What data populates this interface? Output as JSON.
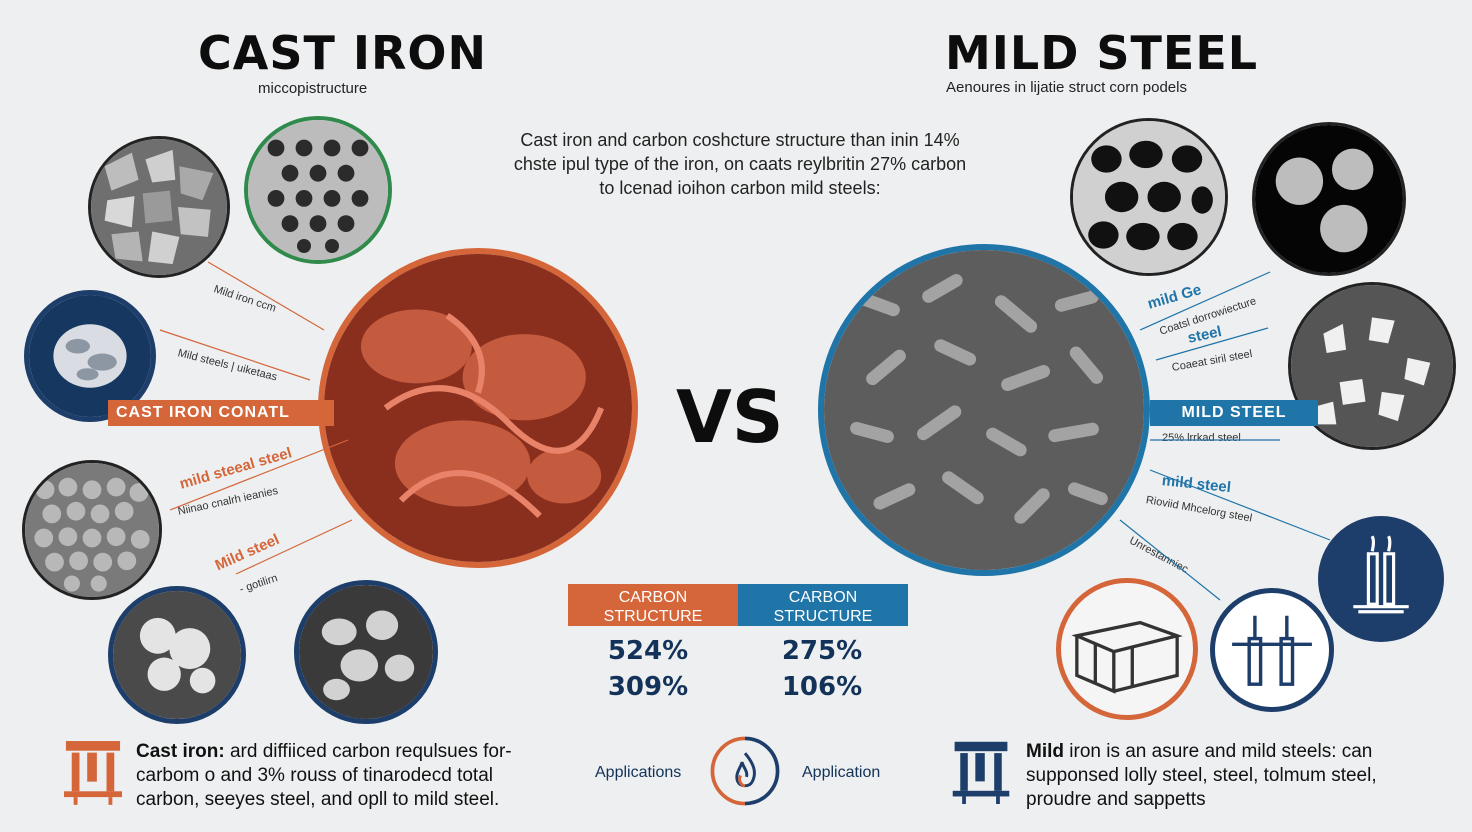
{
  "left": {
    "title": "CAST IRON",
    "subtitle": "miccopistructure",
    "banner": "CAST IRON  CONATL",
    "annotations": [
      "Mild iron ccm",
      "Mild steels | uiketaas",
      "mild steeal steel",
      "Niinao cnalrh ieanies",
      "Mild steel",
      "- gotilirn"
    ],
    "bottom_lead": "Cast iron:",
    "bottom_text_1": " ard diffiiced carbon requlsues for-",
    "bottom_text_2": "carbom o and 3% rouss of tinarodecd total",
    "bottom_text_3": "carbon, seeyes steel, and opll to mild steel.",
    "color": "#d4663a"
  },
  "right": {
    "title": "MILD STEEL",
    "subtitle": "Aenoures in lijatie struct corn podels",
    "banner": "MILD STEEL",
    "annotations": [
      "mild Ge",
      "Coatsl dorrowiecture",
      "steel",
      "Coaeat siril steel",
      "25% lrrkad steel",
      "mild steel",
      "Rioviid Mhcelorg steel",
      "Unrestanniec"
    ],
    "bottom_lead": "Mild",
    "bottom_text_1": " iron is an asure and mild steels: can",
    "bottom_text_2": "supponsed lolly steel, steel, tolmum steel,",
    "bottom_text_3": "proudre and sappetts",
    "color": "#1f74a8"
  },
  "center": {
    "description_1": "Cast iron and carbon coshcture structure than inin 14%",
    "description_2": "chste ipul type of the iron, on caats reylbritin 27% carbon",
    "description_3": "to lcenad ioihon carbon mild steels:",
    "vs": "VS"
  },
  "table": {
    "left_header_1": "CARBON",
    "left_header_2": "STRUCTURE",
    "right_header_1": "CARBON",
    "right_header_2": "STRUCTURE",
    "left_values": [
      "524%",
      "309%"
    ],
    "right_values": [
      "275%",
      "106%"
    ]
  },
  "applications": {
    "left_label": "Applications",
    "right_label": "Application",
    "icon": "flame-icon"
  }
}
